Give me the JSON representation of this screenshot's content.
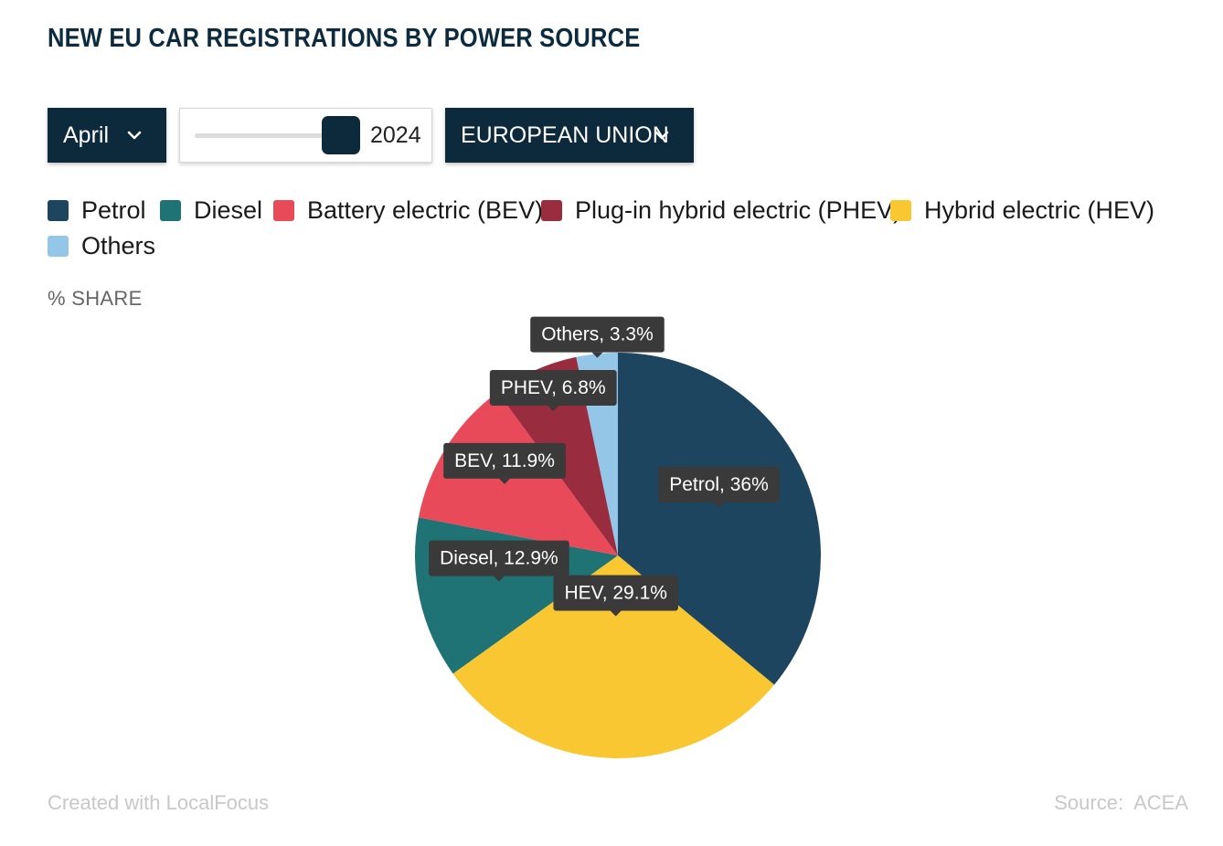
{
  "header": {
    "title": "NEW EU CAR REGISTRATIONS BY POWER SOURCE"
  },
  "controls": {
    "month": "April",
    "year": "2024",
    "year_slider_position": 0.9,
    "region": "EUROPEAN UNION"
  },
  "legend": {
    "items": [
      {
        "label": "Petrol",
        "color": "#1d4560"
      },
      {
        "label": "Diesel",
        "color": "#1f7374"
      },
      {
        "label": "Battery electric (BEV)",
        "color": "#e94a5a"
      },
      {
        "label": "Plug-in hybrid electric (PHEV)",
        "color": "#9a2c3f"
      },
      {
        "label": "Hybrid electric (HEV)",
        "color": "#f8c731"
      },
      {
        "label": "Others",
        "color": "#94c6e8"
      }
    ]
  },
  "unit_label": "% SHARE",
  "chart_data": {
    "type": "pie",
    "unit": "%",
    "slices": [
      {
        "name": "Petrol",
        "value": 36.0,
        "label": "Petrol, 36%",
        "color": "#1d4560"
      },
      {
        "name": "HEV",
        "value": 29.1,
        "label": "HEV, 29.1%",
        "color": "#f8c731"
      },
      {
        "name": "Diesel",
        "value": 12.9,
        "label": "Diesel, 12.9%",
        "color": "#1f7374"
      },
      {
        "name": "BEV",
        "value": 11.9,
        "label": "BEV, 11.9%",
        "color": "#e94a5a"
      },
      {
        "name": "PHEV",
        "value": 6.8,
        "label": "PHEV, 6.8%",
        "color": "#9a2c3f"
      },
      {
        "name": "Others",
        "value": 3.3,
        "label": "Others, 3.3%",
        "color": "#94c6e8"
      }
    ]
  },
  "footer": {
    "credit": "Created with LocalFocus",
    "source": "Source:  ACEA"
  }
}
